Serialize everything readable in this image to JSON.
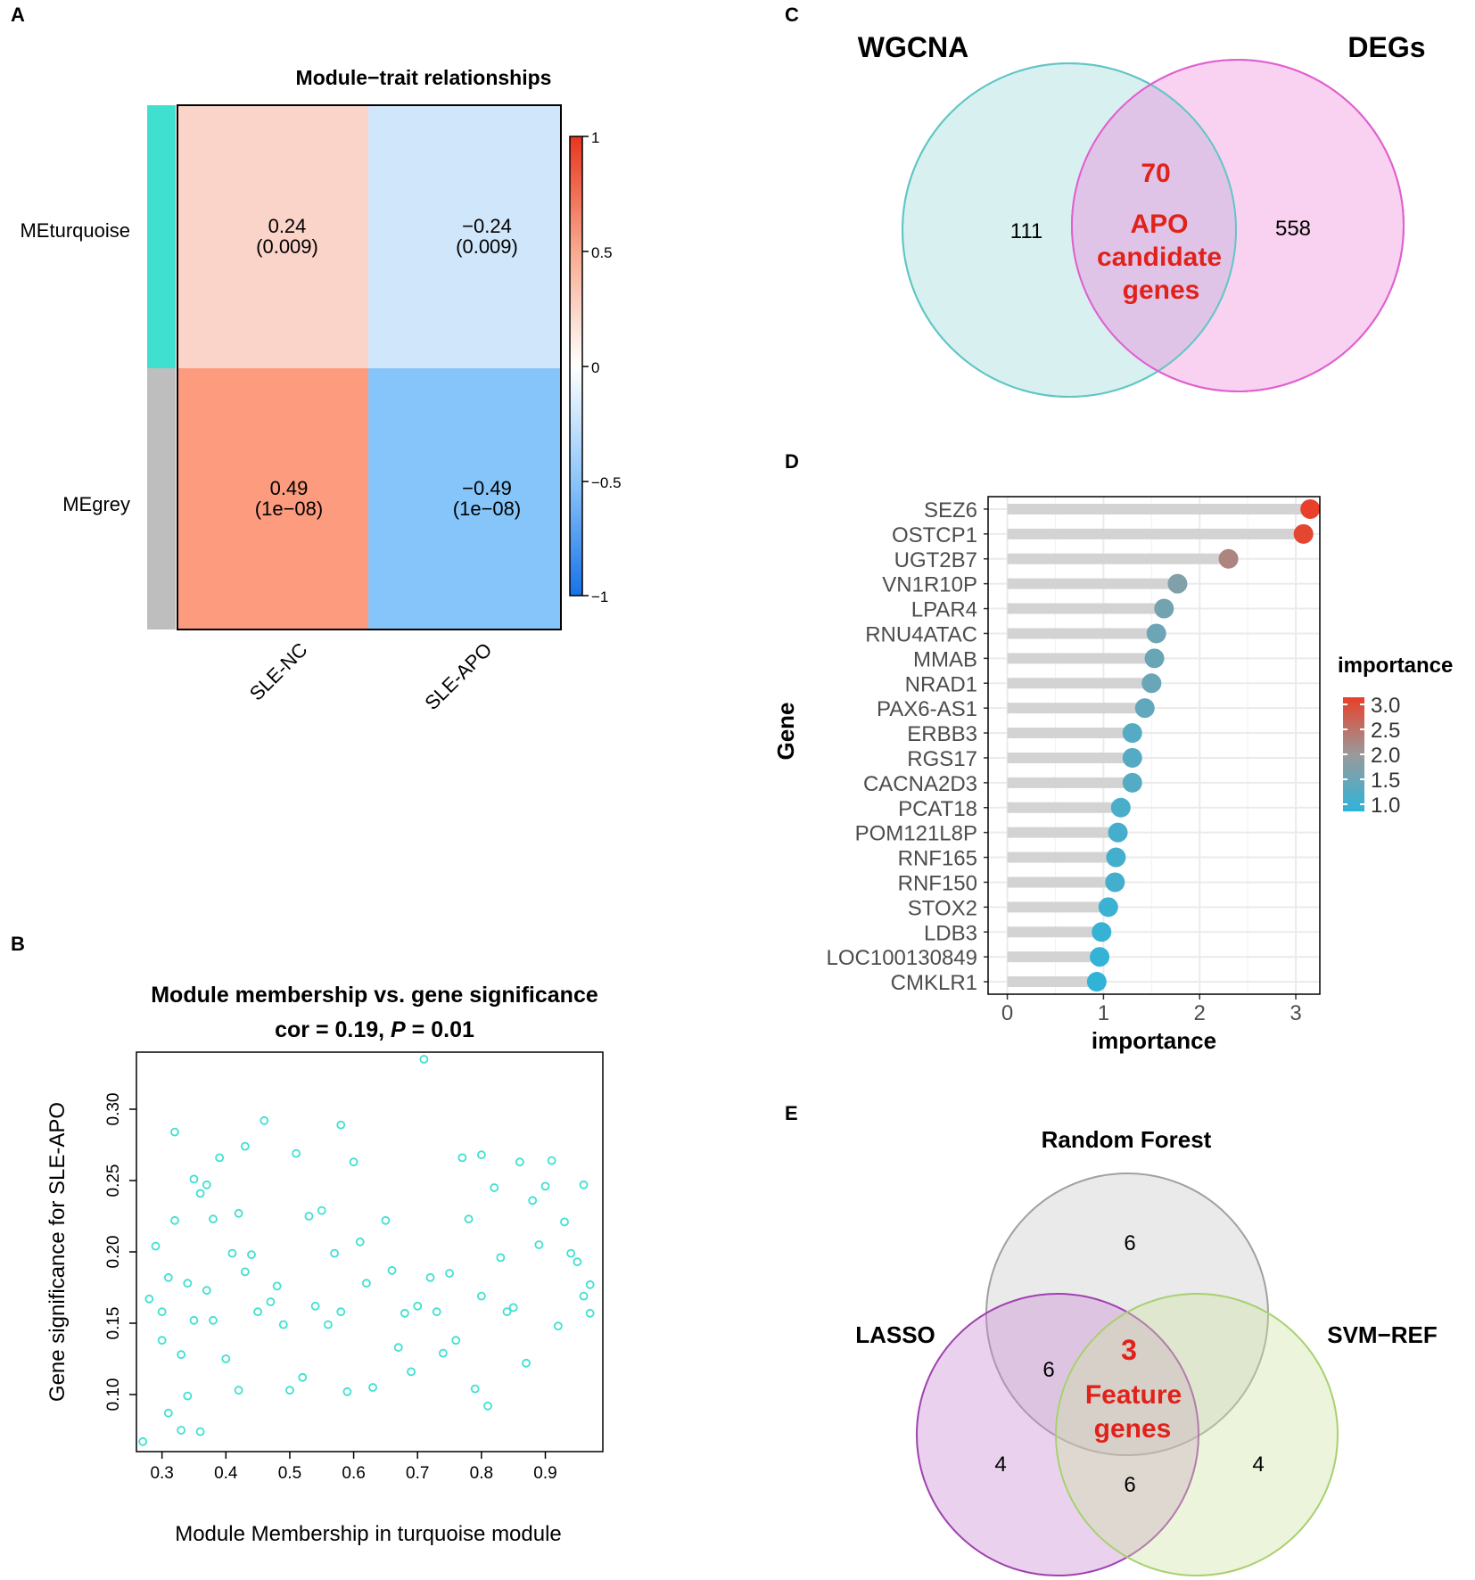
{
  "panels": {
    "A": "A",
    "B": "B",
    "C": "C",
    "D": "D",
    "E": "E"
  },
  "panel_a": {
    "title": "Module−trait relationships",
    "rows": [
      {
        "name": "MEturquoise",
        "color": "#40E0D0"
      },
      {
        "name": "MEgrey",
        "color": "#BEBEBE"
      }
    ],
    "cols": [
      "SLE-NC",
      "SLE-APO"
    ],
    "cells": [
      [
        {
          "value": "0.24",
          "p": "(0.009)",
          "color": "#FAD4C8"
        },
        {
          "value": "−0.24",
          "p": "(0.009)",
          "color": "#D0E6FA"
        }
      ],
      [
        {
          "value": "0.49",
          "p": "(1e−08)",
          "color": "#FC9B7E"
        },
        {
          "value": "−0.49",
          "p": "(1e−08)",
          "color": "#85C5FA"
        }
      ]
    ],
    "legend_ticks": [
      "1",
      "0.5",
      "0",
      "−0.5",
      "−1"
    ],
    "legend_colors": [
      "#E8361E",
      "#F9A98E",
      "#FFFFFF",
      "#8CC5FA",
      "#1872E8"
    ]
  },
  "panel_b": {
    "title_line1": "Module membership vs. gene significance",
    "title_line2_pre": "cor = 0.19, ",
    "title_line2_p": "P",
    "title_line2_post": " = 0.01",
    "point_color": "#40E0D0"
  },
  "panel_c": {
    "left_label": "WGCNA",
    "right_label": "DEGs",
    "left_only": "111",
    "right_only": "558",
    "overlap_count": "70",
    "overlap_line1": "APO",
    "overlap_line2": "candidate",
    "overlap_line3": "genes",
    "left_color": "#D8F0F0",
    "right_color": "#F8D2F0",
    "overlap_color": "#E0C4E8",
    "highlight_color": "#E0221A"
  },
  "panel_d": {
    "legend_title": "importance",
    "legend_ticks": [
      "3.0",
      "2.5",
      "2.0",
      "1.5",
      "1.0"
    ],
    "color_low": "#2EB4DA",
    "color_mid": "#9A9A9A",
    "color_high": "#E8402A"
  },
  "panel_e": {
    "top_label": "Random Forest",
    "left_label": "LASSO",
    "right_label": "SVM−REF",
    "top_only": "6",
    "top_left": "6",
    "left_only": "4",
    "right_only": "4",
    "left_right": "6",
    "center_count": "3",
    "center_line1": "Feature",
    "center_line2": "genes",
    "highlight_color": "#E0221A"
  },
  "chart_data": [
    {
      "type": "scatter",
      "title": "Module membership vs. gene significance",
      "subtitle": "cor = 0.19, P = 0.01",
      "xlabel": "Module Membership in turquoise module",
      "ylabel": "Gene significance for  SLE-APO",
      "xlim": [
        0.26,
        0.99
      ],
      "ylim": [
        0.06,
        0.34
      ],
      "x_ticks": [
        0.3,
        0.4,
        0.5,
        0.6,
        0.7,
        0.8,
        0.9
      ],
      "x_tick_labels": [
        "0.3",
        "0.4",
        "0.5",
        "0.6",
        "0.7",
        "0.8",
        "0.9"
      ],
      "y_ticks": [
        0.1,
        0.15,
        0.2,
        0.25,
        0.3
      ],
      "y_tick_labels": [
        "0.10",
        "0.15",
        "0.20",
        "0.25",
        "0.30"
      ],
      "x": [
        0.27,
        0.28,
        0.29,
        0.3,
        0.3,
        0.31,
        0.31,
        0.32,
        0.32,
        0.33,
        0.33,
        0.34,
        0.34,
        0.35,
        0.35,
        0.36,
        0.36,
        0.37,
        0.37,
        0.38,
        0.38,
        0.39,
        0.4,
        0.41,
        0.42,
        0.42,
        0.43,
        0.43,
        0.44,
        0.45,
        0.46,
        0.47,
        0.48,
        0.49,
        0.5,
        0.51,
        0.52,
        0.53,
        0.54,
        0.55,
        0.56,
        0.57,
        0.58,
        0.58,
        0.59,
        0.6,
        0.61,
        0.62,
        0.63,
        0.65,
        0.66,
        0.67,
        0.68,
        0.69,
        0.7,
        0.71,
        0.72,
        0.73,
        0.74,
        0.75,
        0.76,
        0.77,
        0.78,
        0.79,
        0.8,
        0.8,
        0.81,
        0.82,
        0.83,
        0.84,
        0.85,
        0.86,
        0.87,
        0.88,
        0.89,
        0.9,
        0.91,
        0.92,
        0.93,
        0.94,
        0.95,
        0.96,
        0.96,
        0.97,
        0.97
      ],
      "y": [
        0.067,
        0.167,
        0.204,
        0.158,
        0.138,
        0.182,
        0.087,
        0.222,
        0.284,
        0.128,
        0.075,
        0.178,
        0.099,
        0.251,
        0.152,
        0.074,
        0.241,
        0.173,
        0.247,
        0.152,
        0.223,
        0.266,
        0.125,
        0.199,
        0.227,
        0.103,
        0.186,
        0.274,
        0.198,
        0.158,
        0.292,
        0.165,
        0.176,
        0.149,
        0.103,
        0.269,
        0.112,
        0.225,
        0.162,
        0.229,
        0.149,
        0.199,
        0.289,
        0.158,
        0.102,
        0.263,
        0.207,
        0.178,
        0.105,
        0.222,
        0.187,
        0.133,
        0.157,
        0.116,
        0.162,
        0.335,
        0.182,
        0.158,
        0.129,
        0.185,
        0.138,
        0.266,
        0.223,
        0.104,
        0.169,
        0.268,
        0.092,
        0.245,
        0.196,
        0.158,
        0.161,
        0.263,
        0.122,
        0.236,
        0.205,
        0.246,
        0.264,
        0.148,
        0.221,
        0.199,
        0.193,
        0.169,
        0.247,
        0.177,
        0.157
      ],
      "color": "#40E0D0"
    },
    {
      "type": "lollipop",
      "xlabel": "importance",
      "ylabel": "Gene",
      "xlim": [
        -0.2,
        3.25
      ],
      "x_ticks": [
        0,
        1,
        2,
        3
      ],
      "x_tick_labels": [
        "0",
        "1",
        "2",
        "3"
      ],
      "categories": [
        "SEZ6",
        "OSTCP1",
        "UGT2B7",
        "VN1R10P",
        "LPAR4",
        "RNU4ATAC",
        "MMAB",
        "NRAD1",
        "PAX6-AS1",
        "ERBB3",
        "RGS17",
        "CACNA2D3",
        "PCAT18",
        "POM121L8P",
        "RNF165",
        "RNF150",
        "STOX2",
        "LDB3",
        "LOC100130849",
        "CMKLR1"
      ],
      "values": [
        3.15,
        3.08,
        2.3,
        1.77,
        1.63,
        1.55,
        1.53,
        1.5,
        1.43,
        1.3,
        1.3,
        1.3,
        1.18,
        1.15,
        1.13,
        1.12,
        1.05,
        0.98,
        0.96,
        0.93
      ],
      "color_range": [
        0.9,
        3.15
      ]
    }
  ]
}
